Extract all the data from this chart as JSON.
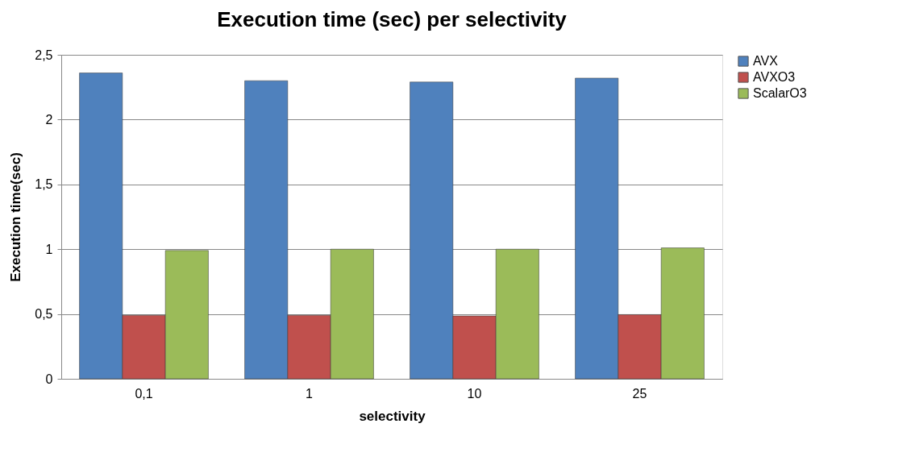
{
  "chart_data": {
    "type": "bar",
    "title": "Execution time (sec) per selectivity",
    "xlabel": "selectivity",
    "ylabel": "Execution time(sec)",
    "categories": [
      "0,1",
      "1",
      "10",
      "25"
    ],
    "series": [
      {
        "name": "AVX",
        "color": "#4f81bd",
        "values": [
          2.36,
          2.3,
          2.29,
          2.32
        ]
      },
      {
        "name": "AVXO3",
        "color": "#c0504d",
        "values": [
          0.49,
          0.49,
          0.485,
          0.495
        ]
      },
      {
        "name": "ScalarO3",
        "color": "#9bbb59",
        "values": [
          0.99,
          1.0,
          1.0,
          1.01
        ]
      }
    ],
    "ylim": [
      0,
      2.5
    ],
    "yticks": [
      0,
      {
        "value": 0.5,
        "label": "0,5"
      },
      1,
      {
        "value": 1.5,
        "label": "1,5"
      },
      2,
      {
        "value": 2.5,
        "label": "2,5"
      }
    ],
    "grid": "y",
    "legend": "right"
  }
}
